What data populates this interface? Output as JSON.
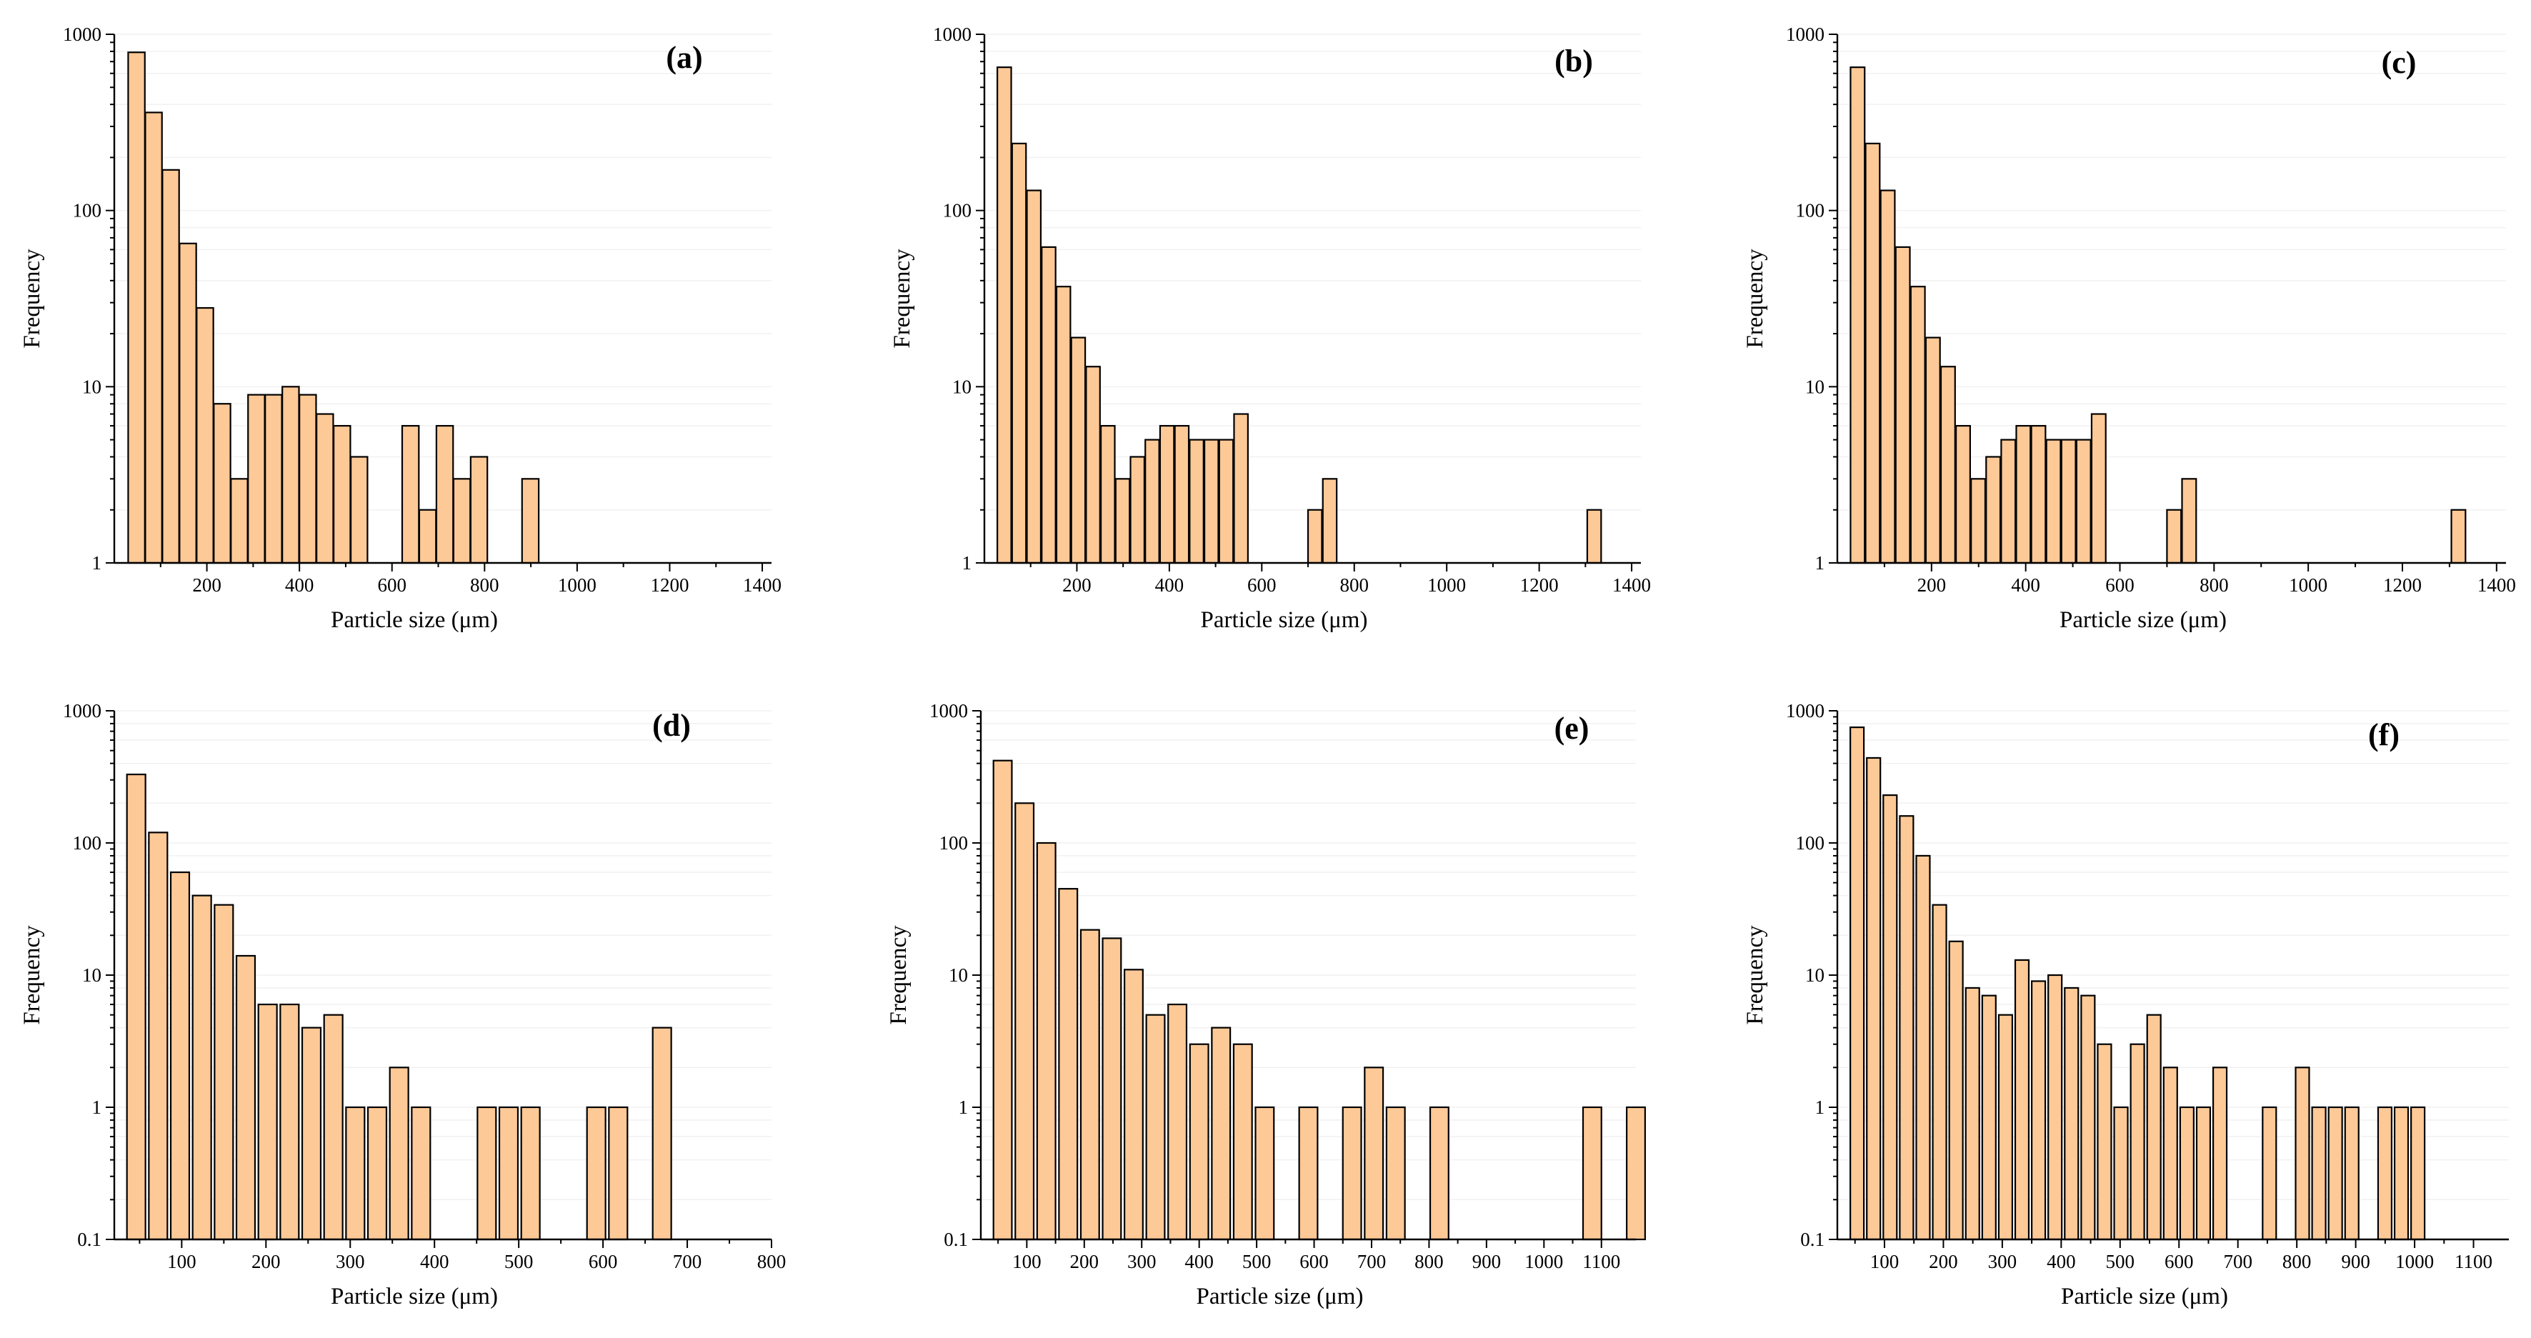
{
  "figure": {
    "common": {
      "xlabel": "Particle size (μm)",
      "ylabel": "Frequency"
    }
  },
  "chart_data": [
    {
      "panel": "(a)",
      "type": "bar",
      "xlabel": "Particle size (μm)",
      "ylabel": "Frequency",
      "yscale": "log",
      "xlim": [
        0,
        1420
      ],
      "ylim": [
        1,
        1000
      ],
      "xticks": [
        200,
        400,
        600,
        800,
        1000,
        1200,
        1400
      ],
      "yticks": [
        1,
        10,
        100,
        1000
      ],
      "ytick_labels": [
        "1",
        "10",
        "100",
        "1000"
      ],
      "bin_width": 36,
      "x": [
        30,
        67,
        104,
        141,
        178,
        215,
        252,
        289,
        326,
        363,
        400,
        437,
        474,
        511,
        622,
        659,
        696,
        733,
        770,
        881
      ],
      "values": [
        790,
        360,
        170,
        65,
        28,
        8,
        3,
        9,
        9,
        10,
        9,
        7,
        6,
        4,
        6,
        2,
        6,
        3,
        4,
        3
      ]
    },
    {
      "panel": "(b)",
      "type": "bar",
      "xlabel": "Particle size (μm)",
      "ylabel": "Frequency",
      "yscale": "log",
      "xlim": [
        0,
        1420
      ],
      "ylim": [
        1,
        1000
      ],
      "xticks": [
        200,
        400,
        600,
        800,
        1000,
        1200,
        1400
      ],
      "yticks": [
        1,
        10,
        100,
        1000
      ],
      "ytick_labels": [
        "1",
        "10",
        "100",
        "1000"
      ],
      "bin_width": 30,
      "x": [
        28,
        60,
        92,
        124,
        156,
        188,
        220,
        252,
        284,
        316,
        348,
        380,
        412,
        444,
        476,
        508,
        540,
        572,
        604,
        636,
        700,
        732,
        1304
      ],
      "values": [
        650,
        240,
        130,
        62,
        37,
        19,
        13,
        6,
        3,
        4,
        5,
        6,
        6,
        5,
        5,
        5,
        7,
        0,
        0,
        0,
        2,
        3,
        2
      ]
    },
    {
      "panel": "(c)",
      "type": "bar",
      "xlabel": "Particle size (μm)",
      "ylabel": "Frequency",
      "yscale": "log",
      "xlim": [
        0,
        1420
      ],
      "ylim": [
        1,
        1000
      ],
      "xticks": [
        200,
        400,
        600,
        800,
        1000,
        1200,
        1400
      ],
      "yticks": [
        1,
        10,
        100,
        1000
      ],
      "ytick_labels": [
        "1",
        "10",
        "100",
        "1000"
      ],
      "bin_width": 30,
      "x": [
        28,
        60,
        92,
        124,
        156,
        188,
        220,
        252,
        284,
        316,
        348,
        380,
        412,
        444,
        476,
        508,
        540,
        572,
        604,
        636,
        700,
        732,
        1304
      ],
      "values": [
        650,
        240,
        130,
        62,
        37,
        19,
        13,
        6,
        3,
        4,
        5,
        6,
        6,
        5,
        5,
        5,
        7,
        0,
        0,
        0,
        2,
        3,
        2
      ]
    },
    {
      "panel": "(d)",
      "type": "bar",
      "xlabel": "Particle size (μm)",
      "ylabel": "Frequency",
      "yscale": "log",
      "xlim": [
        20,
        800
      ],
      "ylim": [
        0.1,
        1000
      ],
      "xticks": [
        100,
        200,
        300,
        400,
        500,
        600,
        700,
        800
      ],
      "yticks": [
        0.1,
        1,
        10,
        100,
        1000
      ],
      "ytick_labels": [
        "0.1",
        "1",
        "10",
        "100",
        "1000"
      ],
      "bin_width": 22,
      "x": [
        35,
        61,
        87,
        113,
        139,
        165,
        191,
        217,
        243,
        269,
        295,
        321,
        347,
        373,
        451,
        477,
        503,
        581,
        607,
        659
      ],
      "values": [
        330,
        120,
        60,
        40,
        34,
        14,
        6,
        6,
        4,
        5,
        1,
        1,
        2,
        1,
        1,
        1,
        1,
        1,
        1,
        4
      ]
    },
    {
      "panel": "(e)",
      "type": "bar",
      "xlabel": "Particle size (μm)",
      "ylabel": "Frequency",
      "yscale": "log",
      "xlim": [
        20,
        1160
      ],
      "ylim": [
        0.1,
        1000
      ],
      "xticks": [
        100,
        200,
        300,
        400,
        500,
        600,
        700,
        800,
        900,
        1000,
        1100
      ],
      "yticks": [
        0.1,
        1,
        10,
        100,
        1000
      ],
      "ytick_labels": [
        "0.1",
        "1",
        "10",
        "100",
        "1000"
      ],
      "bin_width": 32,
      "x": [
        42,
        80,
        118,
        156,
        194,
        232,
        270,
        308,
        346,
        384,
        422,
        460,
        498,
        574,
        650,
        688,
        726,
        802,
        1068,
        1144
      ],
      "values": [
        420,
        200,
        100,
        45,
        22,
        19,
        11,
        5,
        6,
        3,
        4,
        3,
        1,
        1,
        1,
        2,
        1,
        1,
        1,
        1
      ]
    },
    {
      "panel": "(f)",
      "type": "bar",
      "xlabel": "Particle size (μm)",
      "ylabel": "Frequency",
      "yscale": "log",
      "xlim": [
        20,
        1160
      ],
      "ylim": [
        0.1,
        1000
      ],
      "xticks": [
        100,
        200,
        300,
        400,
        500,
        600,
        700,
        800,
        900,
        1000,
        1100
      ],
      "yticks": [
        0.1,
        1,
        10,
        100,
        1000
      ],
      "ytick_labels": [
        "0.1",
        "1",
        "10",
        "100",
        "1000"
      ],
      "bin_width": 23,
      "x": [
        42,
        70,
        98,
        126,
        154,
        182,
        210,
        238,
        266,
        294,
        322,
        350,
        378,
        406,
        434,
        462,
        490,
        518,
        546,
        574,
        602,
        630,
        658,
        742,
        798,
        826,
        854,
        882,
        938,
        966,
        994
      ],
      "values": [
        750,
        440,
        230,
        160,
        80,
        34,
        18,
        8,
        7,
        5,
        13,
        9,
        10,
        8,
        7,
        3,
        1,
        3,
        5,
        2,
        1,
        1,
        2,
        1,
        2,
        1,
        1,
        1,
        1,
        1,
        1
      ]
    }
  ]
}
